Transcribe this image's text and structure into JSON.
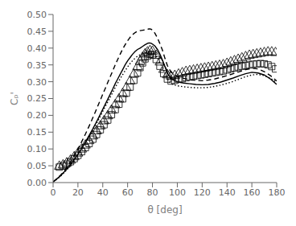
{
  "chart_data": {
    "type": "line",
    "title": "",
    "xlabel": "θ [deg]",
    "ylabel": "Cₚ'",
    "xlim": [
      0,
      180
    ],
    "ylim": [
      0,
      0.5
    ],
    "xticks": [
      0,
      20,
      40,
      60,
      80,
      100,
      120,
      140,
      160,
      180
    ],
    "yticks": [
      {
        "value": 0,
        "label": "0.00"
      },
      0.05,
      {
        "value": 0.1,
        "label": "0.10"
      },
      0.15,
      {
        "value": 0.2,
        "label": "0.20"
      },
      0.25,
      {
        "value": 0.3,
        "label": "0.30"
      },
      0.35,
      {
        "value": 0.4,
        "label": "0.40"
      },
      0.45,
      {
        "value": 0.5,
        "label": "0.50"
      }
    ],
    "grid": false,
    "series": [
      {
        "type": "scatter",
        "marker": "triangle",
        "color": "black",
        "x": [
          5,
          8,
          11,
          14,
          17,
          20,
          23,
          26,
          29,
          32,
          35,
          38,
          41,
          44,
          47,
          50,
          53,
          56,
          59,
          62,
          65,
          68,
          70,
          72,
          74,
          76,
          78,
          80,
          83,
          86,
          89,
          92,
          95,
          98,
          101,
          104,
          107,
          110,
          113,
          116,
          119,
          122,
          125,
          128,
          131,
          134,
          137,
          140,
          143,
          146,
          149,
          152,
          155,
          158,
          161,
          164,
          167,
          170,
          173,
          176,
          179
        ],
        "values": [
          0.048,
          0.052,
          0.058,
          0.066,
          0.076,
          0.087,
          0.099,
          0.111,
          0.124,
          0.138,
          0.153,
          0.168,
          0.183,
          0.198,
          0.215,
          0.231,
          0.248,
          0.264,
          0.282,
          0.302,
          0.322,
          0.344,
          0.36,
          0.372,
          0.382,
          0.388,
          0.392,
          0.39,
          0.378,
          0.358,
          0.336,
          0.32,
          0.316,
          0.318,
          0.322,
          0.326,
          0.33,
          0.332,
          0.334,
          0.336,
          0.338,
          0.34,
          0.342,
          0.344,
          0.346,
          0.348,
          0.35,
          0.354,
          0.358,
          0.362,
          0.366,
          0.37,
          0.374,
          0.378,
          0.38,
          0.382,
          0.384,
          0.386,
          0.388,
          0.388,
          0.386
        ]
      },
      {
        "type": "scatter",
        "marker": "square",
        "color": "black",
        "x": [
          5,
          8,
          11,
          14,
          17,
          20,
          23,
          26,
          29,
          32,
          35,
          38,
          41,
          44,
          47,
          50,
          53,
          56,
          59,
          62,
          65,
          68,
          70,
          72,
          74,
          76,
          78,
          80,
          83,
          86,
          89,
          92,
          95,
          98,
          101,
          104,
          107,
          110,
          113,
          116,
          119,
          122,
          125,
          128,
          131,
          134,
          137,
          140,
          143,
          146,
          149,
          152,
          155,
          158,
          161,
          164,
          167,
          170,
          173,
          176,
          179
        ],
        "values": [
          0.046,
          0.05,
          0.055,
          0.062,
          0.071,
          0.081,
          0.092,
          0.104,
          0.116,
          0.129,
          0.143,
          0.157,
          0.172,
          0.186,
          0.202,
          0.217,
          0.233,
          0.249,
          0.266,
          0.284,
          0.304,
          0.326,
          0.342,
          0.356,
          0.368,
          0.376,
          0.382,
          0.38,
          0.366,
          0.346,
          0.324,
          0.308,
          0.302,
          0.304,
          0.307,
          0.309,
          0.312,
          0.314,
          0.316,
          0.318,
          0.32,
          0.322,
          0.324,
          0.326,
          0.328,
          0.33,
          0.332,
          0.335,
          0.338,
          0.341,
          0.344,
          0.346,
          0.348,
          0.35,
          0.352,
          0.353,
          0.354,
          0.353,
          0.35,
          0.345,
          0.338
        ]
      },
      {
        "type": "line",
        "line_style": "solid",
        "color": "black",
        "x": [
          0,
          2,
          4,
          6,
          8,
          10,
          12,
          14,
          16,
          18,
          20,
          22,
          24,
          26,
          28,
          30,
          32,
          34,
          36,
          38,
          40,
          42,
          44,
          46,
          48,
          50,
          52,
          54,
          56,
          58,
          60,
          62,
          64,
          66,
          68,
          70,
          72,
          74,
          75,
          76,
          77,
          78,
          79,
          80,
          82,
          84,
          86,
          88,
          90,
          92,
          95,
          100,
          105,
          110,
          115,
          120,
          125,
          130,
          135,
          140,
          145,
          150,
          155,
          160,
          165,
          170,
          175,
          180
        ],
        "values": [
          0.002,
          0.008,
          0.014,
          0.02,
          0.028,
          0.036,
          0.044,
          0.054,
          0.064,
          0.074,
          0.085,
          0.096,
          0.108,
          0.12,
          0.133,
          0.147,
          0.16,
          0.174,
          0.188,
          0.203,
          0.218,
          0.233,
          0.248,
          0.263,
          0.278,
          0.294,
          0.308,
          0.322,
          0.336,
          0.35,
          0.362,
          0.372,
          0.382,
          0.39,
          0.396,
          0.4,
          0.405,
          0.41,
          0.412,
          0.414,
          0.415,
          0.415,
          0.414,
          0.412,
          0.406,
          0.396,
          0.382,
          0.365,
          0.345,
          0.326,
          0.308,
          0.3,
          0.296,
          0.294,
          0.292,
          0.291,
          0.292,
          0.295,
          0.299,
          0.305,
          0.311,
          0.318,
          0.324,
          0.328,
          0.326,
          0.32,
          0.308,
          0.292
        ]
      },
      {
        "type": "line",
        "line_style": "dashed",
        "color": "black",
        "x": [
          0,
          2,
          4,
          6,
          8,
          10,
          12,
          14,
          16,
          18,
          20,
          22,
          24,
          26,
          28,
          30,
          32,
          34,
          36,
          38,
          40,
          42,
          44,
          46,
          48,
          50,
          52,
          54,
          56,
          58,
          60,
          62,
          64,
          66,
          68,
          70,
          72,
          74,
          75,
          76,
          77,
          78,
          79,
          80,
          82,
          84,
          86,
          88,
          90,
          92,
          95,
          100,
          105,
          110,
          115,
          120,
          125,
          130,
          135,
          140,
          145,
          150,
          155,
          160,
          165,
          170,
          175,
          180
        ],
        "values": [
          0.002,
          0.008,
          0.015,
          0.022,
          0.03,
          0.04,
          0.05,
          0.061,
          0.073,
          0.086,
          0.1,
          0.114,
          0.129,
          0.144,
          0.16,
          0.176,
          0.193,
          0.21,
          0.228,
          0.245,
          0.263,
          0.28,
          0.298,
          0.315,
          0.332,
          0.35,
          0.366,
          0.382,
          0.397,
          0.41,
          0.422,
          0.432,
          0.44,
          0.446,
          0.45,
          0.452,
          0.453,
          0.454,
          0.455,
          0.456,
          0.457,
          0.457,
          0.456,
          0.453,
          0.444,
          0.43,
          0.413,
          0.394,
          0.37,
          0.348,
          0.328,
          0.316,
          0.31,
          0.306,
          0.304,
          0.303,
          0.305,
          0.308,
          0.313,
          0.318,
          0.324,
          0.33,
          0.336,
          0.34,
          0.338,
          0.33,
          0.318,
          0.302
        ]
      },
      {
        "type": "line",
        "line_style": "dotted",
        "color": "black",
        "x": [
          0,
          2,
          4,
          6,
          8,
          10,
          12,
          14,
          16,
          18,
          20,
          22,
          24,
          26,
          28,
          30,
          32,
          34,
          36,
          38,
          40,
          42,
          44,
          46,
          48,
          50,
          52,
          54,
          56,
          58,
          60,
          62,
          64,
          66,
          68,
          70,
          72,
          74,
          75,
          76,
          77,
          78,
          79,
          80,
          82,
          84,
          86,
          88,
          90,
          92,
          95,
          100,
          105,
          110,
          115,
          120,
          125,
          130,
          135,
          140,
          145,
          150,
          155,
          160,
          165,
          170,
          175,
          180
        ],
        "values": [
          0.002,
          0.007,
          0.013,
          0.019,
          0.026,
          0.034,
          0.042,
          0.051,
          0.061,
          0.071,
          0.082,
          0.093,
          0.105,
          0.117,
          0.129,
          0.142,
          0.156,
          0.169,
          0.183,
          0.197,
          0.212,
          0.226,
          0.24,
          0.254,
          0.268,
          0.283,
          0.296,
          0.309,
          0.321,
          0.333,
          0.344,
          0.354,
          0.363,
          0.37,
          0.376,
          0.38,
          0.383,
          0.386,
          0.387,
          0.388,
          0.389,
          0.389,
          0.388,
          0.386,
          0.38,
          0.37,
          0.357,
          0.342,
          0.325,
          0.308,
          0.294,
          0.288,
          0.285,
          0.283,
          0.282,
          0.282,
          0.283,
          0.286,
          0.29,
          0.295,
          0.301,
          0.308,
          0.315,
          0.32,
          0.322,
          0.318,
          0.31,
          0.298
        ]
      }
    ]
  }
}
